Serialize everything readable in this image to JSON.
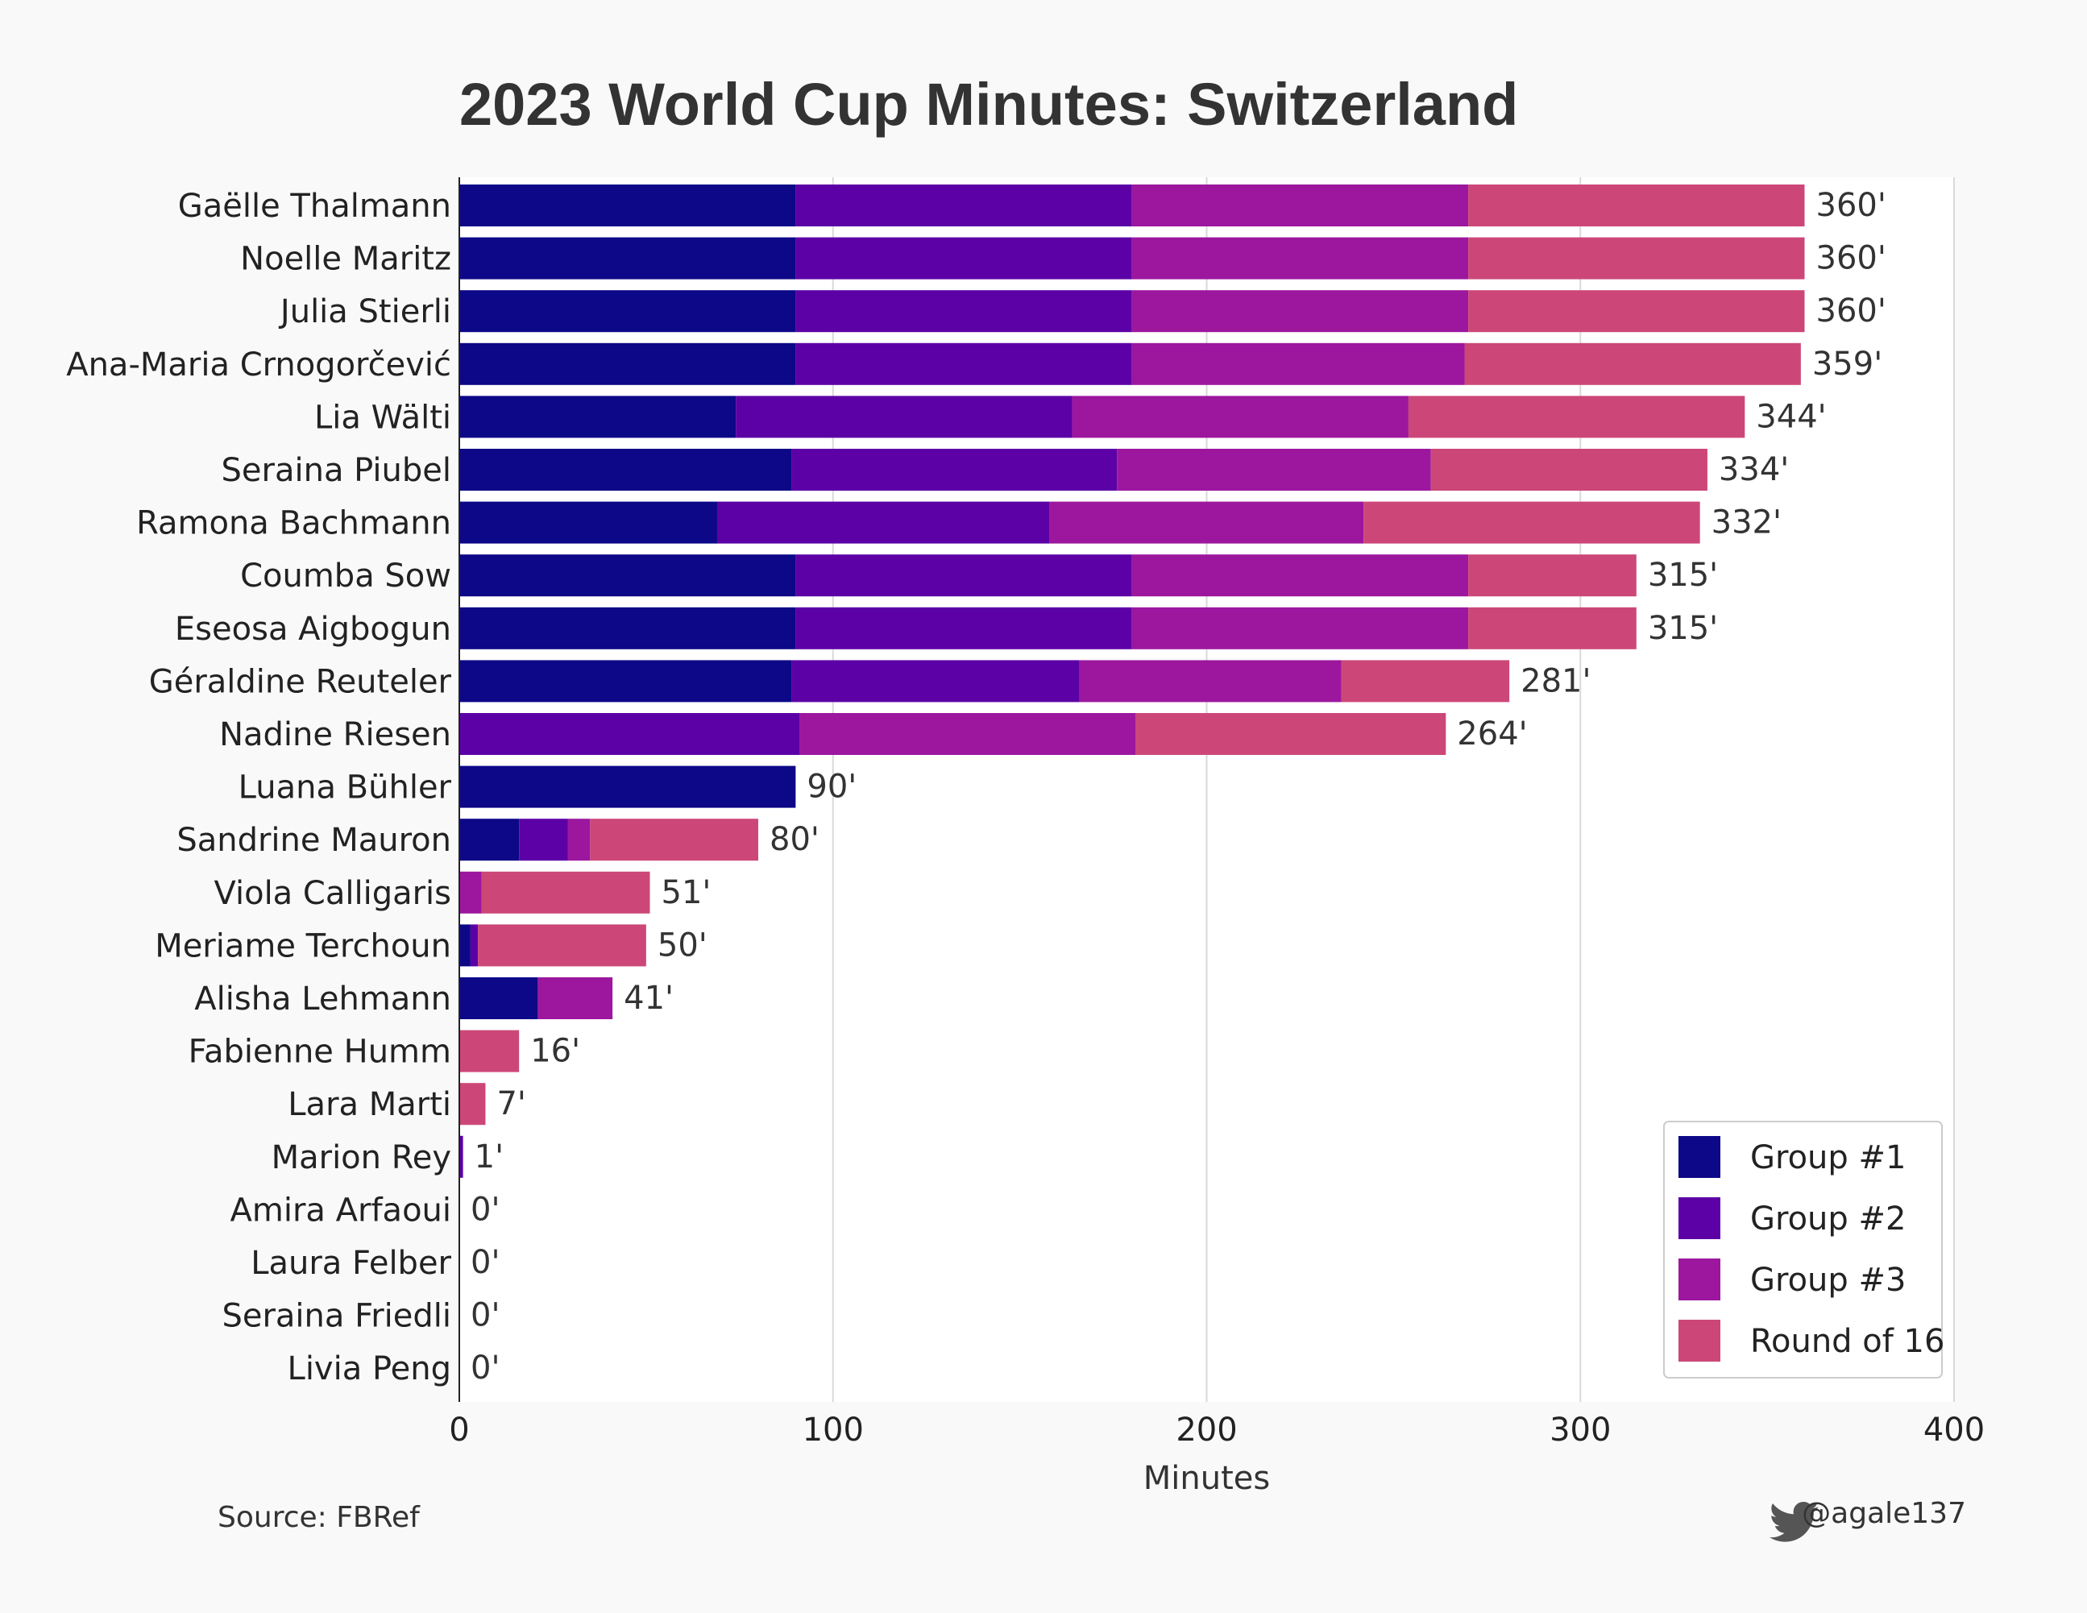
{
  "chart_data": {
    "type": "bar",
    "orientation": "horizontal",
    "stacked": true,
    "title": "2023 World Cup Minutes: Switzerland",
    "xlabel": "Minutes",
    "xlim": [
      0,
      400
    ],
    "xticks": [
      0,
      100,
      200,
      300,
      400
    ],
    "grid": true,
    "legend_position": "bottom-right",
    "value_suffix": "'",
    "categories": [
      "Gaëlle Thalmann",
      "Noelle Maritz",
      "Julia Stierli",
      "Ana-Maria Crnogorčević",
      "Lia Wälti",
      "Seraina Piubel",
      "Ramona Bachmann",
      "Coumba Sow",
      "Eseosa Aigbogun",
      "Géraldine Reuteler",
      "Nadine Riesen",
      "Luana Bühler",
      "Sandrine Mauron",
      "Viola Calligaris",
      "Meriame Terchoun",
      "Alisha Lehmann",
      "Fabienne Humm",
      "Lara Marti",
      "Marion Rey",
      "Amira Arfaoui",
      "Laura Felber",
      "Seraina Friedli",
      "Livia Peng"
    ],
    "series": [
      {
        "name": "Group #1",
        "color": "#0d0887",
        "values": [
          90,
          90,
          90,
          90,
          74,
          89,
          69,
          90,
          90,
          89,
          0,
          90,
          16,
          0,
          3,
          21,
          0,
          0,
          0,
          0,
          0,
          0,
          0
        ]
      },
      {
        "name": "Group #2",
        "color": "#5c01a6",
        "values": [
          90,
          90,
          90,
          90,
          90,
          87,
          89,
          90,
          90,
          77,
          91,
          0,
          13,
          0,
          2,
          0,
          0,
          0,
          1,
          0,
          0,
          0,
          0
        ]
      },
      {
        "name": "Group #3",
        "color": "#9c179e",
        "values": [
          90,
          90,
          90,
          89,
          90,
          84,
          84,
          90,
          90,
          70,
          90,
          0,
          6,
          6,
          0,
          20,
          0,
          0,
          0,
          0,
          0,
          0,
          0
        ]
      },
      {
        "name": "Round of 16",
        "color": "#cc4778",
        "values": [
          90,
          90,
          90,
          90,
          90,
          74,
          90,
          45,
          45,
          45,
          83,
          0,
          45,
          45,
          45,
          0,
          16,
          7,
          0,
          0,
          0,
          0,
          0
        ]
      }
    ],
    "totals": [
      "360'",
      "360'",
      "360'",
      "359'",
      "344'",
      "334'",
      "332'",
      "315'",
      "315'",
      "281'",
      "264'",
      "90'",
      "80'",
      "51'",
      "50'",
      "41'",
      "16'",
      "7'",
      "1'",
      "0'",
      "0'",
      "0'",
      "0'"
    ]
  },
  "footer": {
    "source": "Source: FBRef",
    "handle": "@agale137",
    "handle_icon": "twitter-bird-icon"
  }
}
